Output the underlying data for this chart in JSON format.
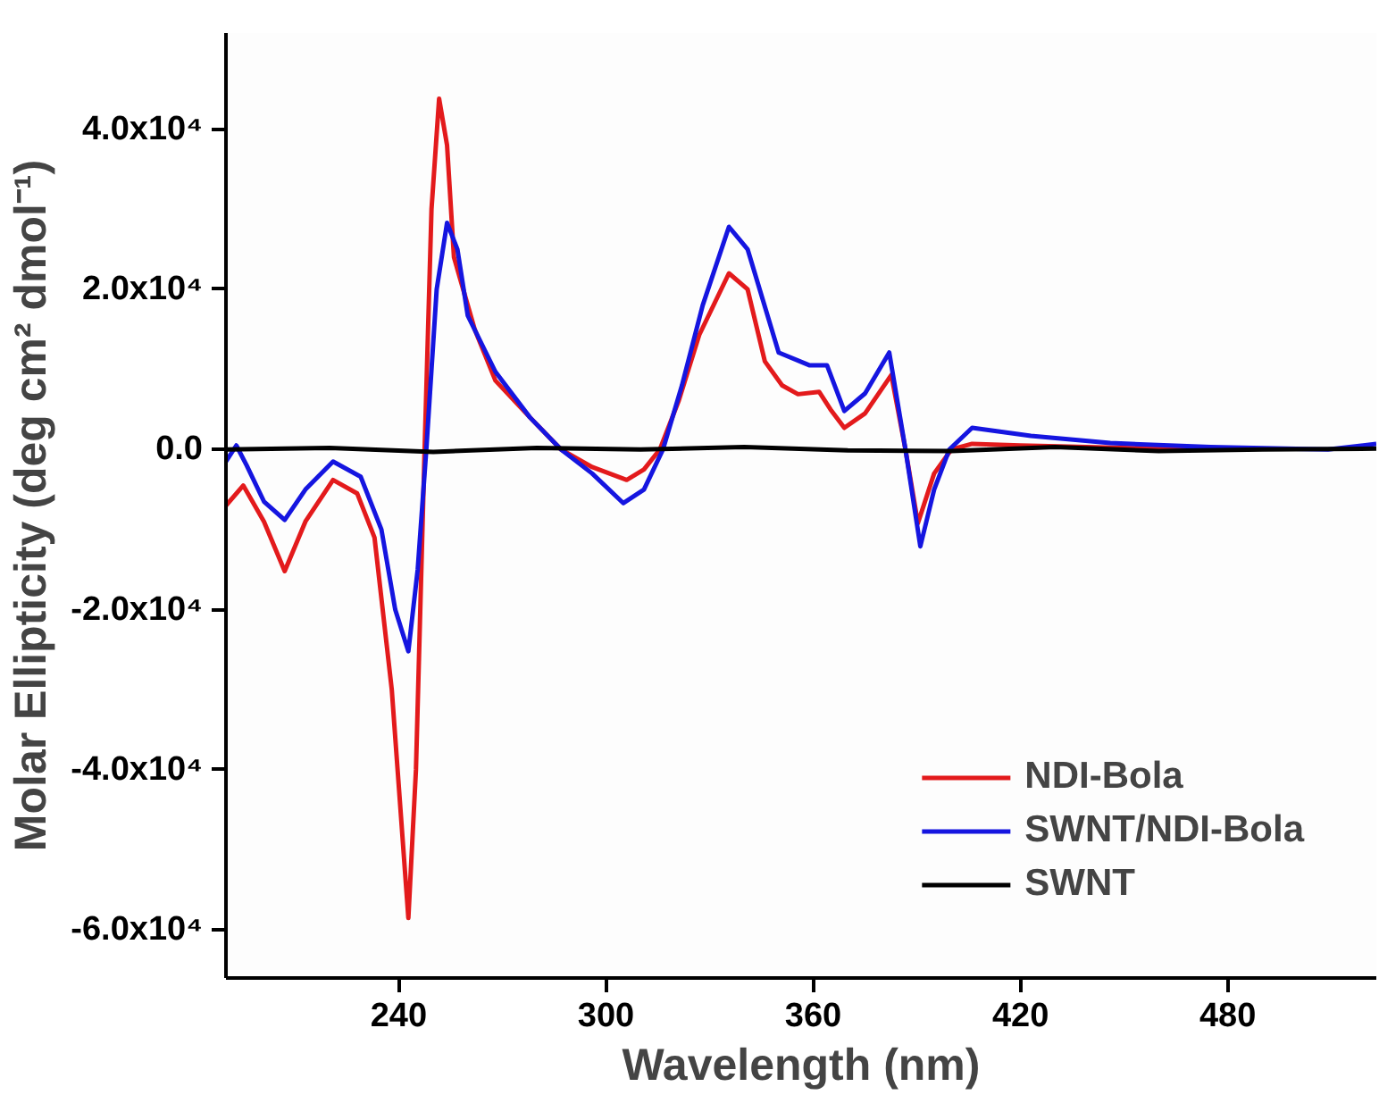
{
  "chart_data": {
    "type": "line",
    "xlabel": "Wavelength (nm)",
    "ylabel": "Molar Ellipticity (deg cm² dmol⁻¹)",
    "xlim": [
      190,
      523
    ],
    "ylim": [
      -66000,
      52000
    ],
    "xticks": [
      240,
      300,
      360,
      420,
      480
    ],
    "yticks": [
      {
        "value": -60000,
        "label": "-6.0x10⁴"
      },
      {
        "value": -40000,
        "label": "-4.0x10⁴"
      },
      {
        "value": -20000,
        "label": "-2.0x10⁴"
      },
      {
        "value": 0,
        "label": "0.0"
      },
      {
        "value": 20000,
        "label": "2.0x10⁴"
      },
      {
        "value": 40000,
        "label": "4.0x10⁴"
      }
    ],
    "grid": false,
    "legend": "bottom right",
    "marker": "none",
    "line_style": "solid",
    "series": [
      {
        "name": "NDI-Bola",
        "color": "#e31a1c",
        "x": [
          190,
          195,
          201,
          207,
          213,
          221,
          228,
          233,
          238,
          242.8,
          245,
          247.5,
          249.5,
          251.7,
          254,
          256,
          262,
          268,
          278,
          287,
          296,
          306,
          311,
          315.6,
          321,
          327,
          335.6,
          341,
          346,
          351,
          355.6,
          361.7,
          365,
          369,
          375,
          382.6,
          386.7,
          390.3,
          395,
          400,
          406,
          420,
          450,
          480
        ],
        "values": [
          -7000,
          -4500,
          -9000,
          -15200,
          -9000,
          -3800,
          -5500,
          -11000,
          -30000,
          -58500,
          -40000,
          0,
          30000,
          43800,
          38000,
          24000,
          15000,
          8600,
          4000,
          0,
          -2200,
          -3800,
          -2500,
          0,
          6000,
          14300,
          22000,
          20000,
          11000,
          8000,
          6900,
          7200,
          5000,
          2700,
          4500,
          9300,
          0,
          -9200,
          -3000,
          0,
          700,
          500,
          200,
          0
        ]
      },
      {
        "name": "SWNT/NDI-Bola",
        "color": "#1515e0",
        "x": [
          190,
          193,
          196,
          201,
          207,
          213,
          221,
          229,
          235,
          239,
          242.8,
          245.5,
          248,
          251,
          254,
          257,
          260,
          268,
          278,
          287,
          296,
          305,
          311,
          316.5,
          322,
          328,
          335.6,
          341,
          350,
          359,
          364,
          369,
          375,
          382,
          386.7,
          391,
          395,
          399.4,
          406,
          423,
          446,
          475,
          509,
          523
        ],
        "values": [
          -1500,
          500,
          -2000,
          -6500,
          -8800,
          -5000,
          -1500,
          -3400,
          -10000,
          -20000,
          -25200,
          -15000,
          0,
          20000,
          28300,
          25000,
          16700,
          9700,
          4000,
          0,
          -3000,
          -6700,
          -5000,
          0,
          8000,
          18000,
          27800,
          25000,
          12100,
          10500,
          10500,
          4800,
          7000,
          12100,
          0,
          -12100,
          -5000,
          0,
          2700,
          1700,
          800,
          300,
          0,
          700
        ]
      },
      {
        "name": "SWNT",
        "color": "#000000",
        "x": [
          190,
          220,
          250,
          280,
          310,
          340,
          370,
          400,
          430,
          460,
          490,
          523
        ],
        "values": [
          0,
          200,
          -300,
          200,
          0,
          300,
          -100,
          -200,
          300,
          -200,
          0,
          100
        ]
      }
    ]
  }
}
